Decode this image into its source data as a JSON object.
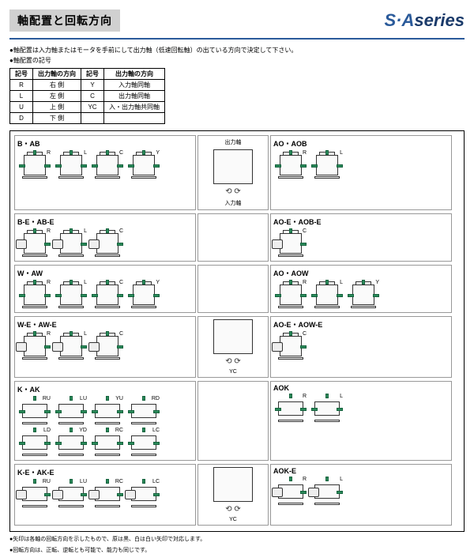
{
  "title": "軸配置と回転方向",
  "series_pre": "S·A",
  "series_post": "series",
  "note1": "●軸配置は入力軸またはモータを手前にして出力軸（低速回転軸）の出ている方向で決定して下さい。",
  "note2": "●軸配置の記号",
  "codetable": {
    "headers": [
      "記号",
      "出力軸の方向",
      "記号",
      "出力軸の方向"
    ],
    "rows": [
      [
        "R",
        "右 側",
        "Y",
        "入力軸同軸"
      ],
      [
        "L",
        "左 側",
        "C",
        "出力軸同軸"
      ],
      [
        "U",
        "上 側",
        "YC",
        "入・出力軸共同軸"
      ],
      [
        "D",
        "下 側",
        "",
        ""
      ]
    ]
  },
  "sections": [
    {
      "left": "B・AB",
      "mid": {
        "top": "出力軸",
        "bot": "入力軸"
      },
      "right": "AO・AOB",
      "lg": [
        "R",
        "L",
        "C",
        "Y"
      ],
      "rg": [
        "R",
        "L"
      ],
      "h": false,
      "motor": false
    },
    {
      "left": "B-E・AB-E",
      "mid": null,
      "right": "AO-E・AOB-E",
      "lg": [
        "R",
        "L",
        "C"
      ],
      "rg": [
        "C"
      ],
      "h": false,
      "motor": true
    },
    {
      "left": "W・AW",
      "mid": null,
      "right": "AO・AOW",
      "lg": [
        "R",
        "L",
        "C",
        "Y"
      ],
      "rg": [
        "R",
        "L",
        "Y"
      ],
      "h": false,
      "motor": false
    },
    {
      "left": "W-E・AW-E",
      "mid": {
        "lbl": "YC"
      },
      "right": "AO-E・AOW-E",
      "lg": [
        "R",
        "L",
        "C"
      ],
      "rg": [
        "C"
      ],
      "h": false,
      "motor": true
    },
    {
      "left": "K・AK",
      "mid": null,
      "right": "AOK",
      "lg": [
        "RU",
        "LU",
        "YU",
        "RD",
        "LD",
        "YD",
        "RC",
        "LC"
      ],
      "rg": [
        "R",
        "L"
      ],
      "h": true,
      "motor": false
    },
    {
      "left": "K-E・AK-E",
      "mid": {
        "lbl": "YC"
      },
      "right": "AOK-E",
      "lg": [
        "RU",
        "LU",
        "RC",
        "LC"
      ],
      "rg": [
        "R",
        "L"
      ],
      "h": true,
      "motor": true
    }
  ],
  "foot1": "●矢印は各軸の回転方向を示したもので、原は黒、白は白い矢印で対応します。",
  "foot2": "●回転方向は、正転、逆転とも可能で、能力も同じです。",
  "colors": {
    "blue": "#2a5a9a",
    "green": "#2a8a5a"
  }
}
